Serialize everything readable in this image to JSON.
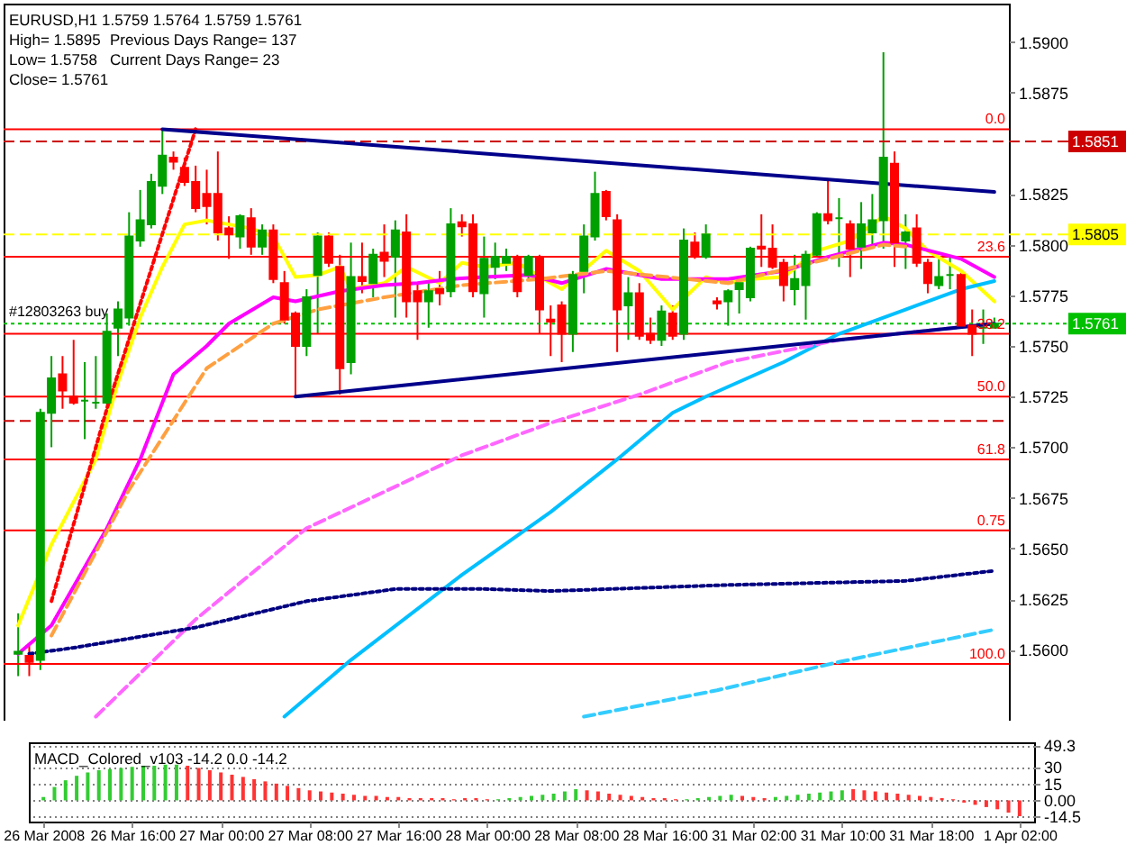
{
  "chart_data": [
    {
      "type": "candlestick",
      "title": "EURUSD,H1 1.5759 1.5764 1.5759 1.5761",
      "annotations": [
        "High= 1.5895",
        "Previous Days Range= 137",
        "Low= 1.5758",
        "Current Days Range= 23",
        "Close= 1.5761",
        {
          "text": "#12803263 buy",
          "y": 1.5761
        },
        {
          "text": "0.0",
          "y": 1.5857
        },
        {
          "text": "23.6",
          "y": 1.5794
        },
        {
          "text": "38.2",
          "y": 1.5756
        },
        {
          "text": "50.0",
          "y": 1.5725
        },
        {
          "text": "61.8",
          "y": 1.5694
        },
        {
          "text": "0.75",
          "y": 1.5659
        },
        {
          "text": "100.0",
          "y": 1.5593
        }
      ],
      "categories": [
        null,
        null,
        null,
        null,
        null,
        null,
        null,
        null,
        null,
        null,
        null,
        null,
        null,
        null,
        null,
        null,
        null,
        null,
        null,
        null,
        null,
        null,
        null,
        null,
        null,
        null,
        null,
        null,
        null,
        null,
        null,
        null,
        null,
        null,
        null,
        null,
        null,
        null,
        null,
        null,
        null,
        null,
        null,
        null,
        null,
        null,
        null,
        null,
        null,
        null,
        null,
        null,
        null,
        null,
        null,
        null,
        null,
        null,
        null,
        null,
        null,
        null,
        null,
        null,
        null,
        null,
        null,
        null,
        null,
        null,
        null,
        null,
        null,
        null,
        null,
        null,
        null,
        null,
        null,
        null,
        null,
        null,
        null,
        null,
        null,
        null,
        null,
        null,
        null
      ],
      "ohlc": [
        [
          1.5598,
          1.5618,
          1.5587,
          1.5599
        ],
        [
          1.5597,
          1.5602,
          1.5587,
          1.5594
        ],
        [
          1.5595,
          1.5719,
          1.559,
          1.5717
        ],
        [
          1.5717,
          1.5745,
          1.57,
          1.5734
        ],
        [
          1.5736,
          1.5745,
          1.5719,
          1.5728
        ],
        [
          1.5725,
          1.5753,
          1.5721,
          1.5722
        ],
        [
          1.5723,
          1.5742,
          1.5704,
          1.5723
        ],
        [
          1.5722,
          1.5745,
          1.5719,
          1.5722
        ],
        [
          1.5722,
          1.5766,
          1.5719,
          1.5757
        ],
        [
          1.5759,
          1.5772,
          1.5745,
          1.5768
        ],
        [
          1.5764,
          1.5816,
          1.576,
          1.5804
        ],
        [
          1.5802,
          1.5827,
          1.5799,
          1.5812
        ],
        [
          1.581,
          1.5835,
          1.5808,
          1.5831
        ],
        [
          1.5829,
          1.5857,
          1.5825,
          1.5844
        ],
        [
          1.5843,
          1.5846,
          1.5837,
          1.5841
        ],
        [
          1.5838,
          1.5843,
          1.5829,
          1.5831
        ],
        [
          1.5831,
          1.5839,
          1.5816,
          1.5818
        ],
        [
          1.5825,
          1.5837,
          1.581,
          1.5819
        ],
        [
          1.5825,
          1.5846,
          1.5802,
          1.5806
        ],
        [
          1.5808,
          1.5814,
          1.5793,
          1.5805
        ],
        [
          1.5804,
          1.5815,
          1.5798,
          1.5814
        ],
        [
          1.5813,
          1.5818,
          1.5795,
          1.5799
        ],
        [
          1.5799,
          1.581,
          1.5795,
          1.5807
        ],
        [
          1.5807,
          1.581,
          1.5781,
          1.5783
        ],
        [
          1.5781,
          1.5787,
          1.5761,
          1.5763
        ],
        [
          1.5766,
          1.5767,
          1.5725,
          1.575
        ],
        [
          1.575,
          1.5778,
          1.5745,
          1.5774
        ],
        [
          1.5785,
          1.5806,
          1.5756,
          1.5804
        ],
        [
          1.5804,
          1.5806,
          1.5789,
          1.5791
        ],
        [
          1.5789,
          1.5795,
          1.5726,
          1.5739
        ],
        [
          1.5742,
          1.5801,
          1.5736,
          1.5784
        ],
        [
          1.5784,
          1.5801,
          1.5776,
          1.5782
        ],
        [
          1.5781,
          1.5798,
          1.5774,
          1.5795
        ],
        [
          1.5796,
          1.581,
          1.5784,
          1.5792
        ],
        [
          1.5794,
          1.5812,
          1.5764,
          1.5807
        ],
        [
          1.5806,
          1.5815,
          1.5764,
          1.5772
        ],
        [
          1.5777,
          1.5781,
          1.5753,
          1.5772
        ],
        [
          1.5772,
          1.5781,
          1.5759,
          1.5777
        ],
        [
          1.5778,
          1.5787,
          1.577,
          1.5776
        ],
        [
          1.5777,
          1.5818,
          1.5774,
          1.581
        ],
        [
          1.5811,
          1.5815,
          1.5804,
          1.5809
        ],
        [
          1.581,
          1.5815,
          1.5774,
          1.5777
        ],
        [
          1.5776,
          1.5804,
          1.5764,
          1.5793
        ],
        [
          1.5789,
          1.5801,
          1.5783,
          1.5794
        ],
        [
          1.5791,
          1.5798,
          1.5787,
          1.5794
        ],
        [
          1.5794,
          1.5795,
          1.5774,
          1.5777
        ],
        [
          1.5785,
          1.5795,
          1.5783,
          1.5794
        ],
        [
          1.5794,
          1.5795,
          1.5756,
          1.5768
        ],
        [
          1.5763,
          1.577,
          1.5745,
          1.5762
        ],
        [
          1.577,
          1.5772,
          1.5742,
          1.5756
        ],
        [
          1.5756,
          1.5787,
          1.5747,
          1.5785
        ],
        [
          1.5787,
          1.581,
          1.5776,
          1.5804
        ],
        [
          1.5804,
          1.5836,
          1.5802,
          1.5825
        ],
        [
          1.5826,
          1.5827,
          1.5812,
          1.5814
        ],
        [
          1.5812,
          1.5815,
          1.5747,
          1.5768
        ],
        [
          1.577,
          1.5784,
          1.5753,
          1.5776
        ],
        [
          1.5776,
          1.5781,
          1.5753,
          1.5755
        ],
        [
          1.5756,
          1.5764,
          1.5751,
          1.5753
        ],
        [
          1.5753,
          1.577,
          1.575,
          1.5767
        ],
        [
          1.5766,
          1.577,
          1.5753,
          1.5755
        ],
        [
          1.5756,
          1.5808,
          1.5753,
          1.5802
        ],
        [
          1.5801,
          1.5806,
          1.5793,
          1.5794
        ],
        [
          1.5794,
          1.581,
          1.5793,
          1.5805
        ],
        [
          1.5772,
          1.5774,
          1.5768,
          1.5771
        ],
        [
          1.5772,
          1.5778,
          1.576,
          1.5777
        ],
        [
          1.5778,
          1.5784,
          1.5766,
          1.5781
        ],
        [
          1.5774,
          1.5799,
          1.5772,
          1.5798
        ],
        [
          1.5799,
          1.5815,
          1.5789,
          1.5798
        ],
        [
          1.5798,
          1.581,
          1.5788,
          1.5789
        ],
        [
          1.5791,
          1.5793,
          1.5772,
          1.578
        ],
        [
          1.5778,
          1.5795,
          1.577,
          1.5783
        ],
        [
          1.578,
          1.5797,
          1.5763,
          1.5795
        ],
        [
          1.5795,
          1.5816,
          1.5794,
          1.5815
        ],
        [
          1.5815,
          1.5832,
          1.581,
          1.5812
        ],
        [
          1.5813,
          1.5823,
          1.5789,
          1.5813
        ],
        [
          1.581,
          1.5812,
          1.5784,
          1.5798
        ],
        [
          1.5799,
          1.5821,
          1.5788,
          1.581
        ],
        [
          1.5806,
          1.5825,
          1.5798,
          1.5812
        ],
        [
          1.5812,
          1.5895,
          1.5798,
          1.5843
        ],
        [
          1.584,
          1.5846,
          1.5789,
          1.5801
        ],
        [
          1.5802,
          1.5815,
          1.5788,
          1.5806
        ],
        [
          1.5808,
          1.5815,
          1.5789,
          1.5791
        ],
        [
          1.5791,
          1.5793,
          1.5776,
          1.5781
        ],
        [
          1.578,
          1.5793,
          1.5778,
          1.5784
        ],
        [
          1.5785,
          1.5794,
          1.5778,
          1.5785
        ],
        [
          1.5785,
          1.5787,
          1.5759,
          1.576
        ],
        [
          1.576,
          1.5768,
          1.5745,
          1.5756
        ],
        [
          1.5759,
          1.5768,
          1.5751,
          1.5759
        ],
        [
          1.5759,
          1.5764,
          1.5759,
          1.5761
        ]
      ],
      "colors": [
        "#00a000",
        "#ff0000",
        "#00a000",
        "#00a000",
        "#ff0000",
        "#ff0000",
        "#00a000",
        "#00a000",
        "#00a000",
        "#00a000",
        "#00a000",
        "#00a000",
        "#00a000",
        "#00a000",
        "#ff0000",
        "#ff0000",
        "#ff0000",
        "#ff0000",
        "#ff0000",
        "#ff0000",
        "#00a000",
        "#ff0000",
        "#00a000",
        "#ff0000",
        "#ff0000",
        "#ff0000",
        "#00a000",
        "#00a000",
        "#ff0000",
        "#ff0000",
        "#00a000",
        "#ff0000",
        "#00a000",
        "#ff0000",
        "#00a000",
        "#ff0000",
        "#ff0000",
        "#00a000",
        "#ff0000",
        "#00a000",
        "#ff0000",
        "#ff0000",
        "#00a000",
        "#00a000",
        "#00a000",
        "#ff0000",
        "#00a000",
        "#ff0000",
        "#ff0000",
        "#ff0000",
        "#00a000",
        "#00a000",
        "#00a000",
        "#ff0000",
        "#ff0000",
        "#00a000",
        "#ff0000",
        "#ff0000",
        "#00a000",
        "#ff0000",
        "#00a000",
        "#ff0000",
        "#00a000",
        "#ff0000",
        "#00a000",
        "#00a000",
        "#00a000",
        "#ff0000",
        "#ff0000",
        "#ff0000",
        "#00a000",
        "#00a000",
        "#00a000",
        "#ff0000",
        "#00a000",
        "#ff0000",
        "#00a000",
        "#00a000",
        "#00a000",
        "#ff0000",
        "#00a000",
        "#ff0000",
        "#ff0000",
        "#00a000",
        "#00a000",
        "#ff0000",
        "#ff0000",
        "#00a000",
        "#00a000"
      ],
      "series": [
        {
          "type": "line",
          "color": "#ffff00",
          "values": [
            1.5612,
            null,
            null,
            1.5652,
            null,
            null,
            null,
            1.5694,
            null,
            1.5732,
            null,
            1.5764,
            null,
            1.5789,
            null,
            1.581,
            null,
            1.5812,
            null,
            1.581,
            null,
            1.5808,
            null,
            1.5804,
            null,
            1.5784,
            null,
            1.5785,
            null,
            1.5789,
            1.5778,
            null,
            null,
            1.5781,
            null,
            1.5789,
            null,
            null,
            1.5781,
            null,
            1.5791,
            null,
            1.5789,
            null,
            null,
            1.5791,
            null,
            null,
            1.5781,
            1.5778,
            null,
            null,
            null,
            1.5797,
            null,
            null,
            1.5787,
            null,
            null,
            1.5768,
            null,
            null,
            1.5784,
            null,
            1.5781,
            null,
            1.5783,
            null,
            null,
            1.5784,
            null,
            null,
            1.5797,
            null,
            null,
            1.5802,
            null,
            null,
            1.5814,
            null,
            1.5808,
            null,
            1.5797,
            null,
            null,
            1.5787,
            null,
            null,
            1.5772
          ]
        },
        {
          "type": "line",
          "color": "#ff00ff",
          "values": [
            1.5598,
            null,
            null,
            1.5612,
            null,
            null,
            null,
            null,
            1.566,
            null,
            null,
            1.5694,
            null,
            null,
            1.5736,
            null,
            null,
            1.575,
            null,
            1.5761,
            null,
            null,
            null,
            1.5774,
            null,
            1.5772,
            null,
            null,
            null,
            1.5777,
            null,
            null,
            null,
            1.578,
            null,
            null,
            1.5781,
            null,
            null,
            1.5783,
            null,
            null,
            1.5784,
            null,
            null,
            null,
            1.5785,
            null,
            null,
            1.5781,
            null,
            null,
            null,
            1.5788,
            null,
            null,
            null,
            null,
            1.5783,
            null,
            null,
            null,
            null,
            null,
            1.5783,
            null,
            null,
            null,
            null,
            1.5787,
            null,
            null,
            null,
            1.5794,
            null,
            null,
            null,
            null,
            1.5801,
            null,
            1.58,
            null,
            null,
            null,
            null,
            1.5793,
            null,
            null,
            1.5784
          ]
        },
        {
          "type": "line",
          "color": "#ffa040",
          "line_style": "dashed",
          "values": [
            null,
            null,
            null,
            1.5607,
            null,
            null,
            null,
            null,
            null,
            null,
            1.5679,
            null,
            null,
            null,
            null,
            null,
            null,
            1.5739,
            null,
            null,
            null,
            null,
            null,
            1.5761,
            null,
            null,
            null,
            1.5768,
            null,
            null,
            null,
            null,
            null,
            1.5774,
            null,
            null,
            null,
            null,
            null,
            null,
            1.578,
            null,
            null,
            null,
            null,
            null,
            null,
            1.5783,
            null,
            null,
            null,
            null,
            null,
            1.5787,
            null,
            null,
            null,
            null,
            null,
            null,
            null,
            null,
            null,
            null,
            1.5781,
            null,
            null,
            null,
            null,
            null,
            null,
            null,
            null,
            1.5793,
            null,
            null,
            null,
            null,
            1.58,
            null,
            1.5799,
            null,
            null,
            null,
            null,
            null,
            null,
            null,
            null
          ]
        },
        {
          "type": "line",
          "color": "#00bfff",
          "values": [
            null,
            null,
            null,
            null,
            null,
            null,
            null,
            null,
            null,
            null,
            null,
            null,
            null,
            null,
            null,
            null,
            null,
            null,
            null,
            null,
            null,
            null,
            null,
            null,
            1.5567,
            null,
            null,
            null,
            null,
            null,
            1.5595,
            null,
            null,
            null,
            null,
            null,
            null,
            null,
            null,
            null,
            1.5637,
            null,
            null,
            null,
            null,
            null,
            null,
            null,
            1.5668,
            null,
            null,
            null,
            null,
            null,
            1.5694,
            null,
            null,
            null,
            null,
            1.5717,
            null,
            null,
            1.5725,
            null,
            null,
            null,
            null,
            null,
            null,
            1.5742,
            null,
            null,
            null,
            null,
            1.5756,
            null,
            null,
            null,
            null,
            null,
            1.5768,
            null,
            null,
            null,
            null,
            1.5778,
            null,
            null,
            1.5782
          ]
        },
        {
          "type": "line",
          "color": "#ff66ff",
          "line_style": "dashed",
          "values": [
            null,
            null,
            null,
            null,
            null,
            null,
            null,
            1.5567,
            null,
            null,
            null,
            null,
            null,
            null,
            null,
            null,
            1.5615,
            null,
            null,
            null,
            null,
            null,
            null,
            null,
            null,
            null,
            1.566,
            null,
            null,
            null,
            null,
            null,
            null,
            null,
            null,
            null,
            null,
            null,
            null,
            null,
            1.5696,
            null,
            null,
            null,
            null,
            null,
            null,
            null,
            1.5712,
            null,
            null,
            null,
            null,
            null,
            null,
            null,
            1.5726,
            null,
            null,
            null,
            null,
            null,
            null,
            null,
            1.5742,
            null,
            null,
            null,
            null,
            null,
            null,
            null,
            null,
            null,
            1.5753,
            null,
            null,
            null,
            null,
            null,
            null,
            null,
            null,
            null,
            null,
            null,
            null,
            null,
            1.5761
          ]
        },
        {
          "type": "line",
          "color": "#000080",
          "line_style": "dotted",
          "values": [
            null,
            1.5598,
            null,
            null,
            null,
            1.5601,
            null,
            null,
            null,
            null,
            null,
            null,
            null,
            null,
            null,
            null,
            1.5611,
            null,
            null,
            null,
            null,
            null,
            null,
            null,
            null,
            null,
            1.5624,
            null,
            null,
            null,
            null,
            null,
            null,
            null,
            1.563,
            null,
            null,
            null,
            null,
            null,
            null,
            null,
            1.563,
            null,
            null,
            null,
            null,
            null,
            1.5629,
            null,
            null,
            null,
            null,
            null,
            null,
            null,
            null,
            null,
            null,
            null,
            null,
            null,
            null,
            null,
            1.5632,
            null,
            null,
            null,
            null,
            null,
            null,
            null,
            null,
            null,
            null,
            null,
            null,
            null,
            null,
            null,
            1.5634,
            null,
            null,
            null,
            null,
            null,
            null,
            null,
            1.5639
          ]
        },
        {
          "type": "line",
          "color": "#33ccff",
          "line_style": "dashed",
          "values": [
            null,
            null,
            null,
            null,
            null,
            null,
            null,
            null,
            null,
            null,
            null,
            null,
            null,
            null,
            null,
            null,
            null,
            null,
            null,
            null,
            null,
            null,
            null,
            null,
            null,
            null,
            null,
            null,
            null,
            null,
            null,
            null,
            null,
            null,
            null,
            null,
            null,
            null,
            null,
            null,
            null,
            null,
            null,
            null,
            null,
            null,
            null,
            null,
            null,
            null,
            null,
            1.5567,
            null,
            null,
            null,
            null,
            null,
            null,
            null,
            null,
            null,
            null,
            null,
            1.558,
            null,
            null,
            null,
            null,
            null,
            null,
            null,
            null,
            null,
            null,
            1.5594,
            null,
            null,
            null,
            null,
            null,
            null,
            null,
            null,
            null,
            null,
            null,
            null,
            null,
            1.561
          ]
        },
        {
          "type": "line",
          "color": "#ff0000",
          "line_style": "dotted",
          "values": [
            null,
            null,
            null,
            1.5624,
            null,
            null,
            null,
            null,
            1.5719,
            null,
            null,
            null,
            null,
            null,
            null,
            null,
            1.5857,
            null,
            null,
            null,
            null,
            null,
            null,
            null,
            null,
            null,
            null,
            null,
            null,
            null,
            null,
            null,
            null,
            null,
            null,
            null,
            null,
            null,
            null,
            null,
            null,
            null,
            null,
            null,
            null,
            null,
            null,
            null,
            null,
            null,
            null,
            null,
            null,
            null,
            null,
            null,
            null,
            null,
            null,
            null,
            null,
            null,
            null,
            null,
            null,
            null,
            null,
            null,
            null,
            null,
            null,
            null,
            null,
            null,
            null,
            null,
            null,
            null,
            null,
            null,
            null,
            null,
            null,
            null,
            null,
            null,
            null,
            null,
            null
          ]
        },
        {
          "type": "line",
          "color": "#00008b",
          "values": [
            null,
            null,
            null,
            null,
            null,
            null,
            null,
            null,
            null,
            null,
            null,
            null,
            null,
            1.5857,
            null,
            null,
            null,
            null,
            null,
            null,
            null,
            null,
            null,
            null,
            null,
            null,
            null,
            null,
            null,
            null,
            null,
            null,
            null,
            null,
            null,
            null,
            null,
            null,
            null,
            null,
            null,
            null,
            null,
            null,
            null,
            null,
            null,
            null,
            null,
            null,
            null,
            null,
            null,
            null,
            null,
            null,
            null,
            null,
            null,
            null,
            null,
            null,
            null,
            null,
            null,
            null,
            null,
            null,
            null,
            null,
            null,
            null,
            null,
            null,
            null,
            null,
            null,
            null,
            null,
            null,
            null,
            null,
            null,
            null,
            null,
            null,
            null,
            null,
            1.5826
          ]
        },
        {
          "type": "line",
          "color": "#00008b",
          "values": [
            null,
            null,
            null,
            null,
            null,
            null,
            null,
            null,
            null,
            null,
            null,
            null,
            null,
            null,
            null,
            null,
            null,
            null,
            null,
            null,
            null,
            null,
            null,
            null,
            null,
            1.5725,
            null,
            null,
            null,
            null,
            null,
            null,
            null,
            null,
            null,
            null,
            null,
            null,
            null,
            null,
            null,
            null,
            null,
            null,
            null,
            null,
            null,
            null,
            null,
            null,
            null,
            null,
            null,
            null,
            null,
            null,
            null,
            null,
            null,
            null,
            null,
            null,
            null,
            null,
            null,
            null,
            null,
            null,
            null,
            null,
            null,
            null,
            null,
            null,
            null,
            null,
            null,
            null,
            null,
            null,
            null,
            null,
            null,
            null,
            null,
            null,
            null,
            null,
            1.5761
          ]
        }
      ],
      "ylim": [
        1.5565,
        1.5919
      ],
      "yticks": [
        {
          "value": 1.56,
          "label": "1.5600"
        },
        {
          "value": 1.5625,
          "label": "1.5625"
        },
        {
          "value": 1.565,
          "label": "1.5650"
        },
        {
          "value": 1.5675,
          "label": "1.5675"
        },
        {
          "value": 1.57,
          "label": "1.5700"
        },
        {
          "value": 1.5725,
          "label": "1.5725"
        },
        {
          "value": 1.575,
          "label": "1.5750"
        },
        {
          "value": 1.5775,
          "label": "1.5775"
        },
        {
          "value": 1.58,
          "label": "1.5800"
        },
        {
          "value": 1.5825,
          "label": "1.5825"
        },
        {
          "value": 1.5875,
          "label": "1.5875"
        },
        {
          "value": 1.59,
          "label": "1.5900"
        }
      ],
      "ref_lines": [
        {
          "axis": "y",
          "value": 1.5857,
          "label": null,
          "color": "#ff0000"
        },
        {
          "axis": "y",
          "value": 1.5851,
          "label": "1.5851",
          "color": "#cc0000",
          "line_style": "dashed"
        },
        {
          "axis": "y",
          "value": 1.5805,
          "label": "1.5805",
          "color": "#ffff00",
          "line_style": "dashed"
        },
        {
          "axis": "y",
          "value": 1.5794,
          "label": null,
          "color": "#ff0000"
        },
        {
          "axis": "y",
          "value": 1.5761,
          "label": "1.5761",
          "color": "#00c000",
          "line_style": "dotted"
        },
        {
          "axis": "y",
          "value": 1.5756,
          "label": null,
          "color": "#ff0000"
        },
        {
          "axis": "y",
          "value": 1.5725,
          "label": null,
          "color": "#ff0000"
        },
        {
          "axis": "y",
          "value": 1.5713,
          "label": null,
          "color": "#cc0000",
          "line_style": "dashed"
        },
        {
          "axis": "y",
          "value": 1.5694,
          "label": null,
          "color": "#ff0000"
        },
        {
          "axis": "y",
          "value": 1.5659,
          "label": null,
          "color": "#ff0000"
        },
        {
          "axis": "y",
          "value": 1.5593,
          "label": null,
          "color": "#ff0000"
        }
      ],
      "tick_labels": "y"
    },
    {
      "type": "bar",
      "title": "MACD_Colored_v103 -14.2 0.0 -14.2",
      "categories": [
        "26 Mar 2008",
        null,
        null,
        null,
        null,
        null,
        null,
        null,
        "26 Mar 16:00",
        null,
        null,
        null,
        null,
        null,
        null,
        null,
        "27 Mar 00:00",
        null,
        null,
        null,
        null,
        null,
        null,
        null,
        "27 Mar 08:00",
        null,
        null,
        null,
        null,
        null,
        null,
        null,
        "27 Mar 16:00",
        null,
        null,
        null,
        null,
        null,
        null,
        null,
        "28 Mar 00:00",
        null,
        null,
        null,
        null,
        null,
        null,
        null,
        "28 Mar 08:00",
        null,
        null,
        null,
        null,
        null,
        null,
        null,
        "28 Mar 16:00",
        null,
        null,
        null,
        null,
        null,
        null,
        null,
        "31 Mar 02:00",
        null,
        null,
        null,
        null,
        null,
        null,
        null,
        "31 Mar 10:00",
        null,
        null,
        null,
        null,
        null,
        null,
        null,
        "31 Mar 18:00",
        null,
        null,
        null,
        null,
        null,
        null,
        null,
        "1 Apr 02:00"
      ],
      "values": [
        3,
        12,
        18,
        22,
        25,
        27,
        28,
        29,
        30,
        31,
        31,
        32,
        32,
        31,
        29,
        27,
        25,
        23,
        21,
        19,
        17,
        15,
        13,
        11,
        9,
        8,
        7,
        6,
        5,
        4,
        4,
        3,
        3,
        2,
        2,
        2,
        2,
        1,
        2,
        2,
        1,
        1,
        2,
        3,
        4,
        5,
        6,
        8,
        10,
        9,
        8,
        6,
        5,
        4,
        3,
        2,
        2,
        1,
        1,
        2,
        3,
        4,
        5,
        4,
        3,
        2,
        3,
        4,
        5,
        6,
        7,
        8,
        9,
        10,
        9,
        8,
        7,
        6,
        5,
        4,
        3,
        2,
        1,
        -2,
        -4,
        -6,
        -8,
        -11,
        -14.2
      ],
      "colors": [
        "#33cc33",
        "#33cc33",
        "#33cc33",
        "#33cc33",
        "#33cc33",
        "#33cc33",
        "#33cc33",
        "#33cc33",
        "#33cc33",
        "#33cc33",
        "#33cc33",
        "#33cc33",
        "#33cc33",
        "#ff3333",
        "#ff3333",
        "#ff3333",
        "#ff3333",
        "#ff3333",
        "#ff3333",
        "#ff3333",
        "#ff3333",
        "#ff3333",
        "#ff3333",
        "#ff3333",
        "#ff3333",
        "#ff3333",
        "#ff3333",
        "#ff3333",
        "#ff3333",
        "#ff3333",
        "#ff3333",
        "#ff3333",
        "#ff3333",
        "#ff3333",
        "#ff3333",
        "#ff3333",
        "#ff3333",
        "#ff3333",
        "#ff3333",
        "#ff3333",
        "#ff3333",
        "#33cc33",
        "#33cc33",
        "#33cc33",
        "#33cc33",
        "#33cc33",
        "#33cc33",
        "#33cc33",
        "#33cc33",
        "#ff3333",
        "#ff3333",
        "#ff3333",
        "#ff3333",
        "#ff3333",
        "#ff3333",
        "#ff3333",
        "#ff3333",
        "#ff3333",
        "#33cc33",
        "#33cc33",
        "#33cc33",
        "#33cc33",
        "#33cc33",
        "#ff3333",
        "#ff3333",
        "#ff3333",
        "#33cc33",
        "#33cc33",
        "#33cc33",
        "#33cc33",
        "#33cc33",
        "#33cc33",
        "#33cc33",
        "#ff3333",
        "#ff3333",
        "#ff3333",
        "#ff3333",
        "#ff3333",
        "#ff3333",
        "#ff3333",
        "#ff3333",
        "#ff3333",
        "#ff3333",
        "#ff3333",
        "#ff3333",
        "#ff3333",
        "#ff3333",
        "#ff3333",
        "#ff3333"
      ],
      "ylim": [
        -19,
        52
      ],
      "yticks": [
        49.3,
        30,
        15,
        {
          "value": 0,
          "label": "0.00"
        },
        -14.5
      ],
      "grid": "y"
    }
  ]
}
